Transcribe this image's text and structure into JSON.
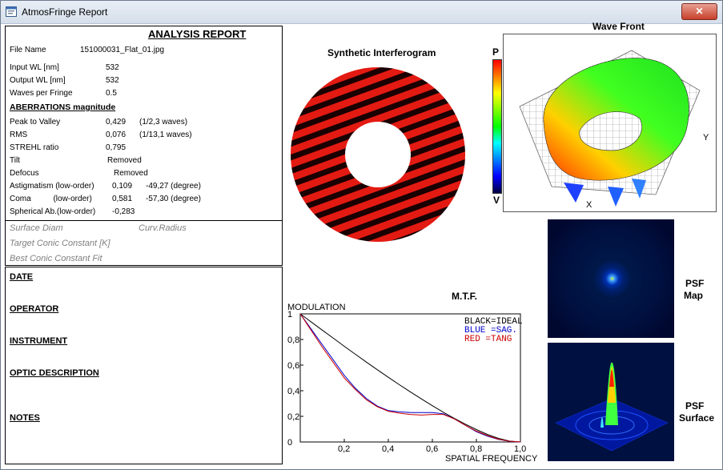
{
  "window": {
    "title": "AtmosFringe  Report",
    "close": "✕"
  },
  "report": {
    "title": "ANALYSIS  REPORT",
    "file_name_label": "File Name",
    "file_name": "151000031_Flat_01.jpg",
    "input_wl_label": "Input  WL [nm]",
    "input_wl": "532",
    "output_wl_label": "Output WL [nm]",
    "output_wl": "532",
    "waves_label": "Waves per Fringe",
    "waves": "0.5",
    "aberr_header": "ABERRATIONS magnitude",
    "ptv_label": "Peak to Valley",
    "ptv": "0,429",
    "ptv_waves": "(1/2,3 waves)",
    "rms_label": "RMS",
    "rms": "0,076",
    "rms_waves": "(1/13,1 waves)",
    "strehl_label": "STREHL ratio",
    "strehl": "0,795",
    "tilt_label": "Tilt",
    "tilt": "Removed",
    "defocus_label": "Defocus",
    "defocus": "Removed",
    "astig_label": "Astigmatism  (low-order)",
    "astig": "0,109",
    "astig_deg": "-49,27  (degree)",
    "coma_label": "Coma          (low-order)",
    "coma": "0,581",
    "coma_deg": "-57,30  (degree)",
    "sph_label": "Spherical Ab.(low-order)",
    "sph": "-0,283",
    "surface_diam": "Surface Diam",
    "curv_radius": "Curv.Radius",
    "target_conic": "Target Conic Constant [K]",
    "best_conic": "Best Conic Constant Fit"
  },
  "info": {
    "date": "DATE",
    "operator": "OPERATOR",
    "instrument": "INSTRUMENT",
    "optic": "OPTIC DESCRIPTION",
    "notes": "NOTES"
  },
  "interferogram": {
    "title": "Synthetic Interferogram"
  },
  "wavefront": {
    "title": "Wave Front",
    "scale_top": "P",
    "scale_bottom": "V",
    "x_axis": "X",
    "y_axis": "Y"
  },
  "psf": {
    "map_label": "PSF\nMap",
    "surface_label": "PSF\nSurface",
    "map_l1": "PSF",
    "map_l2": "Map",
    "surf_l1": "PSF",
    "surf_l2": "Surface"
  },
  "colors": {
    "fringe": "#e31a12",
    "fringe_dark": "#1a0000",
    "mtf_ideal": "#000000",
    "mtf_sag": "#0000cc",
    "mtf_tang": "#cc0000",
    "psf_bg": "#001040"
  },
  "chart_data": {
    "type": "line",
    "title": "M.T.F.",
    "ylabel": "MODULATION",
    "xlabel": "SPATIAL FREQUENCY",
    "xlim": [
      0,
      1
    ],
    "ylim": [
      0,
      1
    ],
    "x_ticks": [
      "0,2",
      "0,4",
      "0,6",
      "0,8",
      "1,0"
    ],
    "y_ticks": [
      "0",
      "0,2",
      "0,4",
      "0,6",
      "0,8",
      "1"
    ],
    "legend": [
      "BLACK=IDEAL",
      "BLUE  =SAG.",
      "RED   =TANG"
    ],
    "x": [
      0,
      0.05,
      0.1,
      0.15,
      0.2,
      0.25,
      0.3,
      0.35,
      0.4,
      0.45,
      0.5,
      0.55,
      0.6,
      0.65,
      0.7,
      0.75,
      0.8,
      0.85,
      0.9,
      0.95,
      1.0
    ],
    "series": [
      {
        "name": "IDEAL",
        "values": [
          1.0,
          0.936,
          0.873,
          0.81,
          0.747,
          0.685,
          0.624,
          0.564,
          0.505,
          0.447,
          0.391,
          0.336,
          0.283,
          0.232,
          0.184,
          0.139,
          0.097,
          0.059,
          0.028,
          0.007,
          0.0
        ]
      },
      {
        "name": "SAG.",
        "values": [
          1.0,
          0.88,
          0.76,
          0.64,
          0.52,
          0.42,
          0.34,
          0.28,
          0.245,
          0.235,
          0.23,
          0.23,
          0.23,
          0.22,
          0.18,
          0.13,
          0.08,
          0.045,
          0.02,
          0.005,
          0.0
        ]
      },
      {
        "name": "TANG",
        "values": [
          1.0,
          0.87,
          0.74,
          0.62,
          0.5,
          0.41,
          0.33,
          0.275,
          0.24,
          0.225,
          0.215,
          0.21,
          0.215,
          0.215,
          0.18,
          0.13,
          0.085,
          0.05,
          0.022,
          0.006,
          0.0
        ]
      }
    ]
  }
}
